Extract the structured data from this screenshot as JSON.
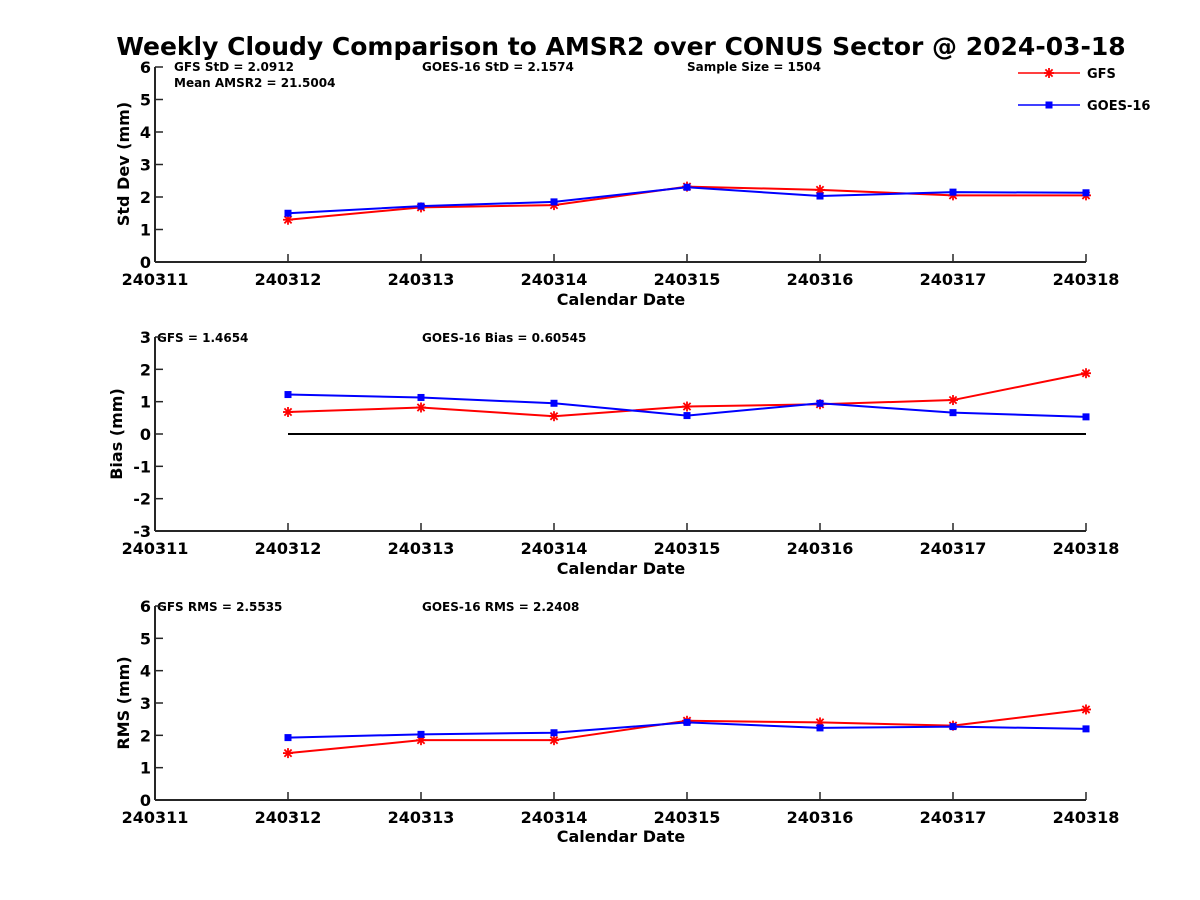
{
  "title": "Weekly Cloudy Comparison to AMSR2 over CONUS Sector @ 2024-03-18",
  "legend": {
    "position": "top-right",
    "entries": [
      "GFS",
      "GOES-16"
    ]
  },
  "colors": {
    "GFS": "#ff0000",
    "GOES-16": "#0000ff",
    "axis": "#262626",
    "zero_line": "#000000"
  },
  "markers": {
    "GFS": "asterisk",
    "GOES-16": "square"
  },
  "chart_data": [
    {
      "type": "line",
      "xlabel": "Calendar Date",
      "ylabel": "Std Dev (mm)",
      "x_ticks": [
        "240311",
        "240312",
        "240313",
        "240314",
        "240315",
        "240316",
        "240317",
        "240318"
      ],
      "ylim": [
        0,
        6
      ],
      "y_ticks": [
        0,
        1,
        2,
        3,
        4,
        5,
        6
      ],
      "grid": false,
      "annotations": [
        "GFS StD = 2.0912",
        "Mean AMSR2 = 21.5004",
        "GOES-16 StD = 2.1574",
        "Sample Size = 1504"
      ],
      "x": [
        "240312",
        "240313",
        "240314",
        "240315",
        "240316",
        "240317",
        "240318"
      ],
      "series": [
        {
          "name": "GFS",
          "values": [
            1.3,
            1.68,
            1.75,
            2.32,
            2.22,
            2.05,
            2.05
          ]
        },
        {
          "name": "GOES-16",
          "values": [
            1.5,
            1.72,
            1.85,
            2.3,
            2.03,
            2.15,
            2.13
          ]
        }
      ]
    },
    {
      "type": "line",
      "xlabel": "Calendar Date",
      "ylabel": "Bias (mm)",
      "x_ticks": [
        "240311",
        "240312",
        "240313",
        "240314",
        "240315",
        "240316",
        "240317",
        "240318"
      ],
      "ylim": [
        -3,
        3
      ],
      "y_ticks": [
        -3,
        -2,
        -1,
        0,
        1,
        2,
        3
      ],
      "grid": false,
      "zero_line": true,
      "annotations": [
        "GFS = 1.4654",
        "GOES-16 Bias  = 0.60545"
      ],
      "x": [
        "240312",
        "240313",
        "240314",
        "240315",
        "240316",
        "240317",
        "240318"
      ],
      "series": [
        {
          "name": "GFS",
          "values": [
            0.68,
            0.82,
            0.55,
            0.85,
            0.92,
            1.05,
            1.88
          ]
        },
        {
          "name": "GOES-16",
          "values": [
            1.22,
            1.13,
            0.95,
            0.57,
            0.95,
            0.66,
            0.53
          ]
        }
      ]
    },
    {
      "type": "line",
      "xlabel": "Calendar Date",
      "ylabel": "RMS (mm)",
      "x_ticks": [
        "240311",
        "240312",
        "240313",
        "240314",
        "240315",
        "240316",
        "240317",
        "240318"
      ],
      "ylim": [
        0,
        6
      ],
      "y_ticks": [
        0,
        1,
        2,
        3,
        4,
        5,
        6
      ],
      "grid": false,
      "annotations": [
        "GFS RMS = 2.5535",
        "GOES-16 RMS = 2.2408"
      ],
      "x": [
        "240312",
        "240313",
        "240314",
        "240315",
        "240316",
        "240317",
        "240318"
      ],
      "series": [
        {
          "name": "GFS",
          "values": [
            1.45,
            1.85,
            1.85,
            2.45,
            2.4,
            2.3,
            2.8
          ]
        },
        {
          "name": "GOES-16",
          "values": [
            1.93,
            2.03,
            2.08,
            2.4,
            2.23,
            2.27,
            2.2
          ]
        }
      ]
    }
  ]
}
